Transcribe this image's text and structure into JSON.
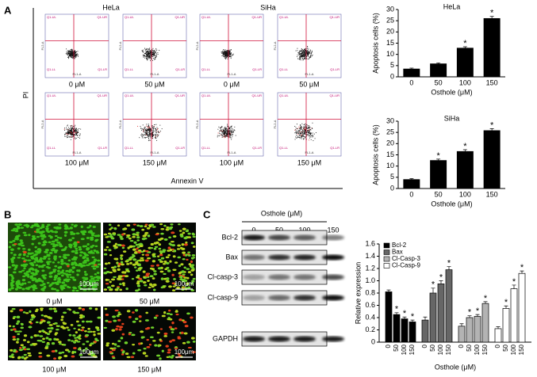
{
  "panel_labels": [
    "A",
    "B",
    "C"
  ],
  "flow_cytometry": {
    "cell_lines": [
      "HeLa",
      "SiHa"
    ],
    "y_label": "PI",
    "x_label": "Annexin V",
    "doses": [
      "0 μM",
      "50 μM",
      "100 μM",
      "150 μM"
    ],
    "quadrants": [
      "Q1-UL",
      "Q1-UR",
      "Q1-LL",
      "Q1-LR"
    ],
    "axis_names": [
      "FL2-A",
      "FL1-A"
    ]
  },
  "chart_data": [
    {
      "type": "bar",
      "title": "HeLa",
      "categories": [
        "0",
        "50",
        "100",
        "150"
      ],
      "values": [
        3.5,
        5.8,
        12.8,
        26
      ],
      "errors": [
        0.4,
        0.4,
        0.6,
        0.9
      ],
      "annotations": [
        null,
        null,
        "*",
        "*"
      ],
      "color": "#000000",
      "ylim": [
        0,
        30
      ],
      "yticks": [
        0,
        5,
        10,
        15,
        20,
        25,
        30
      ],
      "y_label": "Apoptosis cells (%)",
      "x_label": "Osthole (μM)"
    },
    {
      "type": "bar",
      "title": "SiHa",
      "categories": [
        "0",
        "50",
        "100",
        "150"
      ],
      "values": [
        4,
        12.5,
        16.5,
        25.8
      ],
      "errors": [
        0.4,
        0.6,
        0.8,
        0.9
      ],
      "annotations": [
        null,
        "*",
        "*",
        "*"
      ],
      "color": "#000000",
      "ylim": [
        0,
        30
      ],
      "yticks": [
        0,
        5,
        10,
        15,
        20,
        25,
        30
      ],
      "y_label": "Apoptosis cells (%)",
      "x_label": "Osthole (μM)"
    },
    {
      "type": "grouped_bar",
      "categories": [
        "0",
        "50",
        "100",
        "150"
      ],
      "series": [
        {
          "name": "Bcl-2",
          "color": "#000000",
          "values": [
            0.82,
            0.45,
            0.38,
            0.33
          ],
          "errors": [
            0.03,
            0.03,
            0.03,
            0.03
          ],
          "annotations": [
            null,
            "*",
            "*",
            "*"
          ]
        },
        {
          "name": "Bax",
          "color": "#666666",
          "values": [
            0.36,
            0.8,
            0.95,
            1.18
          ],
          "errors": [
            0.05,
            0.08,
            0.05,
            0.05
          ],
          "annotations": [
            null,
            "*",
            "*",
            "*"
          ]
        },
        {
          "name": "Cl-Casp-3",
          "color": "#b3b3b3",
          "values": [
            0.26,
            0.4,
            0.42,
            0.63
          ],
          "errors": [
            0.04,
            0.03,
            0.03,
            0.03
          ],
          "annotations": [
            null,
            "*",
            "*",
            "*"
          ]
        },
        {
          "name": "Cl-Casp-9",
          "color": "#ffffff",
          "values": [
            0.22,
            0.55,
            0.87,
            1.12
          ],
          "errors": [
            0.03,
            0.04,
            0.06,
            0.04
          ],
          "annotations": [
            null,
            "*",
            "*",
            "*"
          ]
        }
      ],
      "ylim": [
        0,
        1.6
      ],
      "yticks": [
        0,
        0.2,
        0.4,
        0.6,
        0.8,
        {
          "value": 1,
          "label": "1.0"
        },
        1.2,
        1.4,
        1.6
      ],
      "y_label": "Relative expression",
      "x_label": "Osthole (μM)",
      "legend": "top-left"
    }
  ],
  "fluorescence": {
    "doses": [
      "0 μM",
      "50 μM",
      "100 μM",
      "150 μM"
    ],
    "scale_bar": "100μm"
  },
  "western_blot": {
    "header": "Osthole (μM)",
    "lanes": [
      "0",
      "50",
      "100",
      "150"
    ],
    "proteins": [
      "Bcl-2",
      "Bax",
      "Cl-casp-3",
      "Cl-casp-9",
      "GAPDH"
    ]
  }
}
